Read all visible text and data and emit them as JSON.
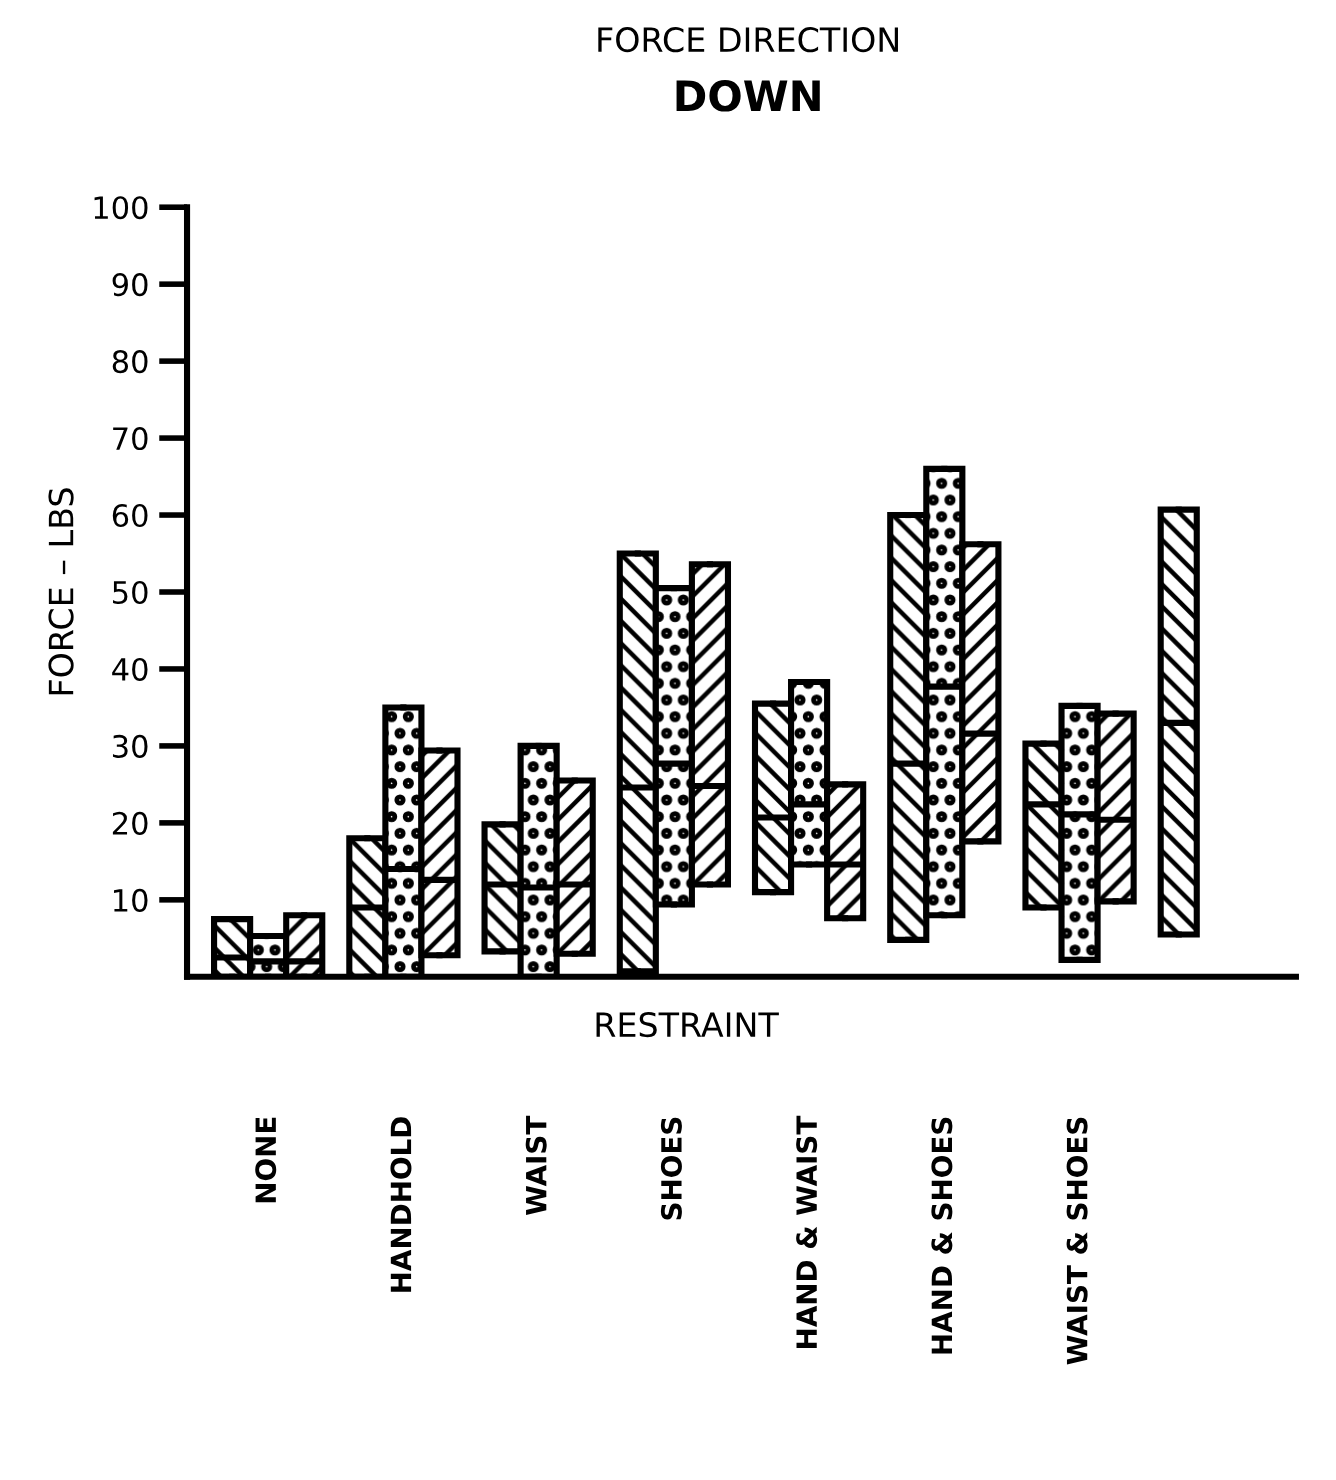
{
  "chart_data": {
    "type": "box",
    "title": "FORCE DIRECTION",
    "subtitle": "DOWN",
    "xlabel": "RESTRAINT",
    "ylabel": "FORCE – LBS",
    "categories": [
      "NONE",
      "HANDHOLD",
      "WAIST",
      "SHOES",
      "HAND & WAIST",
      "HAND & SHOES",
      "WAIST & SHOES",
      null
    ],
    "ylim": [
      0,
      100
    ],
    "yticks": [
      10,
      20,
      30,
      40,
      50,
      60,
      70,
      80,
      90,
      100
    ],
    "grid": false,
    "legend": false,
    "series": [
      {
        "color": "#000000",
        "boxes": [
          {
            "low": 0,
            "q1": 0,
            "median": 2.5,
            "q3": 7.5,
            "high": 7.5
          },
          {
            "low": 0,
            "q1": 0,
            "median": 9,
            "q3": 18,
            "high": 18
          },
          {
            "low": 3.3,
            "q1": 3.3,
            "median": 12,
            "q3": 19.8,
            "high": 19.8
          },
          {
            "low": 0.7,
            "q1": 0.7,
            "median": 24.6,
            "q3": 55,
            "high": 55
          },
          {
            "low": 11,
            "q1": 11,
            "median": 20.7,
            "q3": 35.5,
            "high": 35.5
          },
          {
            "low": 4.8,
            "q1": 4.8,
            "median": 27.7,
            "q3": 60,
            "high": 60
          },
          {
            "low": 9,
            "q1": 9,
            "median": 22.4,
            "q3": 30.3,
            "high": 30.3
          },
          {
            "low": 5.5,
            "q1": 5.5,
            "median": 33,
            "q3": 60.7,
            "high": 60.7
          }
        ]
      },
      {
        "color": "#000000",
        "boxes": [
          {
            "low": 0,
            "q1": 0,
            "median": 2,
            "q3": 5.3,
            "high": 5.3
          },
          {
            "low": 0,
            "q1": 0,
            "median": 14,
            "q3": 35,
            "high": 35
          },
          {
            "low": 0,
            "q1": 0,
            "median": 11.6,
            "q3": 30,
            "high": 30
          },
          {
            "low": 9.4,
            "q1": 9.4,
            "median": 27.7,
            "q3": 50.5,
            "high": 50.5
          },
          {
            "low": 14.6,
            "q1": 14.6,
            "median": 22.4,
            "q3": 38.3,
            "high": 38.3
          },
          {
            "low": 8,
            "q1": 8,
            "median": 37.7,
            "q3": 66,
            "high": 66
          },
          {
            "low": 2.2,
            "q1": 2.2,
            "median": 21.1,
            "q3": 35.2,
            "high": 35.2
          },
          null
        ]
      },
      {
        "color": "#000000",
        "boxes": [
          {
            "low": 0,
            "q1": 0,
            "median": 2,
            "q3": 8,
            "high": 8
          },
          {
            "low": 2.8,
            "q1": 2.8,
            "median": 12.6,
            "q3": 29.4,
            "high": 29.4
          },
          {
            "low": 3,
            "q1": 3,
            "median": 12,
            "q3": 25.5,
            "high": 25.5
          },
          {
            "low": 12,
            "q1": 12,
            "median": 24.8,
            "q3": 53.6,
            "high": 53.6
          },
          {
            "low": 7.6,
            "q1": 7.6,
            "median": 14.6,
            "q3": 25,
            "high": 25
          },
          {
            "low": 17.6,
            "q1": 17.6,
            "median": 31.6,
            "q3": 56.2,
            "high": 56.2
          },
          {
            "low": 9.8,
            "q1": 9.8,
            "median": 20.4,
            "q3": 34.2,
            "high": 34.2
          },
          null
        ]
      }
    ]
  }
}
